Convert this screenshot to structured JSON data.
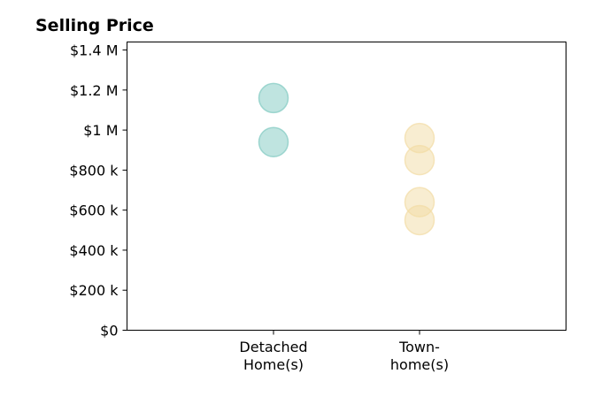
{
  "chart_data": {
    "type": "scatter",
    "title": "Selling Price",
    "xlabel": "",
    "ylabel": "",
    "categories": [
      {
        "lines": [
          "Detached",
          "Home(s)"
        ]
      },
      {
        "lines": [
          "Town-",
          "home(s)"
        ]
      }
    ],
    "ylim": [
      0,
      1440000
    ],
    "yticks": [
      {
        "value": 0,
        "label": "$0"
      },
      {
        "value": 200000,
        "label": "$200 k"
      },
      {
        "value": 400000,
        "label": "$400 k"
      },
      {
        "value": 600000,
        "label": "$600 k"
      },
      {
        "value": 800000,
        "label": "$800 k"
      },
      {
        "value": 1000000,
        "label": "$1 M"
      },
      {
        "value": 1200000,
        "label": "$1.2 M"
      },
      {
        "value": 1400000,
        "label": "$1.4 M"
      }
    ],
    "grid": false,
    "series": [
      {
        "category_index": 0,
        "color": "#7fc9c1",
        "values": [
          1160000,
          940000
        ]
      },
      {
        "category_index": 1,
        "color": "#f2dca4",
        "values": [
          960000,
          850000,
          640000,
          550000
        ]
      }
    ]
  }
}
